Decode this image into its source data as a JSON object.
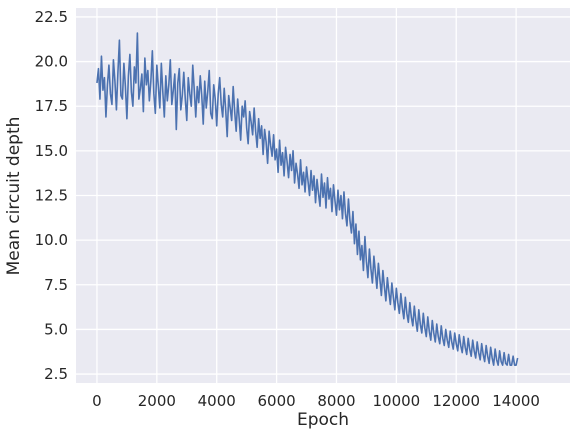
{
  "chart_data": {
    "type": "line",
    "title": "",
    "xlabel": "Epoch",
    "ylabel": "Mean circuit depth",
    "xlim": [
      -700,
      15800
    ],
    "ylim": [
      2.0,
      23.0
    ],
    "xticks": [
      0,
      2000,
      4000,
      6000,
      8000,
      10000,
      12000,
      14000
    ],
    "yticks": [
      2.5,
      5.0,
      7.5,
      10.0,
      12.5,
      15.0,
      17.5,
      20.0,
      22.5
    ],
    "grid": true,
    "legend": "none",
    "style": {
      "background": "#eaeaf2",
      "grid_color": "#ffffff",
      "line_color": "#4c72b0"
    },
    "series": [
      {
        "x_start": 0,
        "x_step": 50,
        "values": [
          18.8,
          19.6,
          17.9,
          20.3,
          18.4,
          19.1,
          16.9,
          18.7,
          19.8,
          18.2,
          17.6,
          20.1,
          18.9,
          17.3,
          19.4,
          21.2,
          18.1,
          17.9,
          19.9,
          18.6,
          16.8,
          19.2,
          20.4,
          18.3,
          17.5,
          19.7,
          18.8,
          21.6,
          17.9,
          18.5,
          19.3,
          17.2,
          20.2,
          18.7,
          19.5,
          17.8,
          18.9,
          20.6,
          18.2,
          17.1,
          19.8,
          18.6,
          17.4,
          19.9,
          18.3,
          16.9,
          19.2,
          17.8,
          18.7,
          20.1,
          17.6,
          18.4,
          19.3,
          16.2,
          18.8,
          19.6,
          17.3,
          18.1,
          19.4,
          17.9,
          16.7,
          19.1,
          18.2,
          17.5,
          19.8,
          18.4,
          16.9,
          18.6,
          17.7,
          19.2,
          18.1,
          16.5,
          18.9,
          17.4,
          18.3,
          19.5,
          17.1,
          16.8,
          18.7,
          17.9,
          16.4,
          18.2,
          19.1,
          17.6,
          16.9,
          18.5,
          17.3,
          15.8,
          18.1,
          17.4,
          16.7,
          18.6,
          17.2,
          16.1,
          17.9,
          16.8,
          15.6,
          17.5,
          16.9,
          17.8,
          16.3,
          15.4,
          17.2,
          16.6,
          15.9,
          17.4,
          16.1,
          15.2,
          16.8,
          15.7,
          16.4,
          14.8,
          16.2,
          15.5,
          14.3,
          16.1,
          15.3,
          14.7,
          15.9,
          14.5,
          15.1,
          13.8,
          15.6,
          14.2,
          14.9,
          13.6,
          15.2,
          14.4,
          13.5,
          14.8,
          13.9,
          15.0,
          13.2,
          14.3,
          13.7,
          12.9,
          14.5,
          13.1,
          13.8,
          12.7,
          14.1,
          13.3,
          12.5,
          13.9,
          12.8,
          13.6,
          12.1,
          13.4,
          12.6,
          11.9,
          13.7,
          12.4,
          13.2,
          11.8,
          13.5,
          12.3,
          12.9,
          11.6,
          13.1,
          12.2,
          11.4,
          12.8,
          11.7,
          12.5,
          11.2,
          12.7,
          11.5,
          10.8,
          12.3,
          11.1,
          10.4,
          11.6,
          9.8,
          10.9,
          9.2,
          10.5,
          8.9,
          9.7,
          8.3,
          10.2,
          8.8,
          7.9,
          9.5,
          8.4,
          7.6,
          9.1,
          8.2,
          7.3,
          8.7,
          7.8,
          6.9,
          8.3,
          7.4,
          6.6,
          7.9,
          7.1,
          6.4,
          7.6,
          6.8,
          6.1,
          7.3,
          6.5,
          5.9,
          7.0,
          6.2,
          5.6,
          6.8,
          5.9,
          5.4,
          6.5,
          5.7,
          5.2,
          6.3,
          5.5,
          4.9,
          6.1,
          5.3,
          4.8,
          5.9,
          5.1,
          4.6,
          5.7,
          4.9,
          4.4,
          5.5,
          4.8,
          4.3,
          5.3,
          4.6,
          4.2,
          5.2,
          4.5,
          4.1,
          5.0,
          4.4,
          4.0,
          4.9,
          4.3,
          3.9,
          4.8,
          4.2,
          3.8,
          4.7,
          4.1,
          3.7,
          4.6,
          4.0,
          3.6,
          4.5,
          3.9,
          3.5,
          4.4,
          3.8,
          3.4,
          4.3,
          3.7,
          3.3,
          4.2,
          3.6,
          3.2,
          4.1,
          3.5,
          3.1,
          4.0,
          3.4,
          3.0,
          3.9,
          3.3,
          3.0,
          3.8,
          3.2,
          3.0,
          3.7,
          3.1,
          3.0,
          3.6,
          3.0,
          3.0,
          3.5,
          3.0,
          3.0,
          3.4
        ]
      }
    ]
  }
}
